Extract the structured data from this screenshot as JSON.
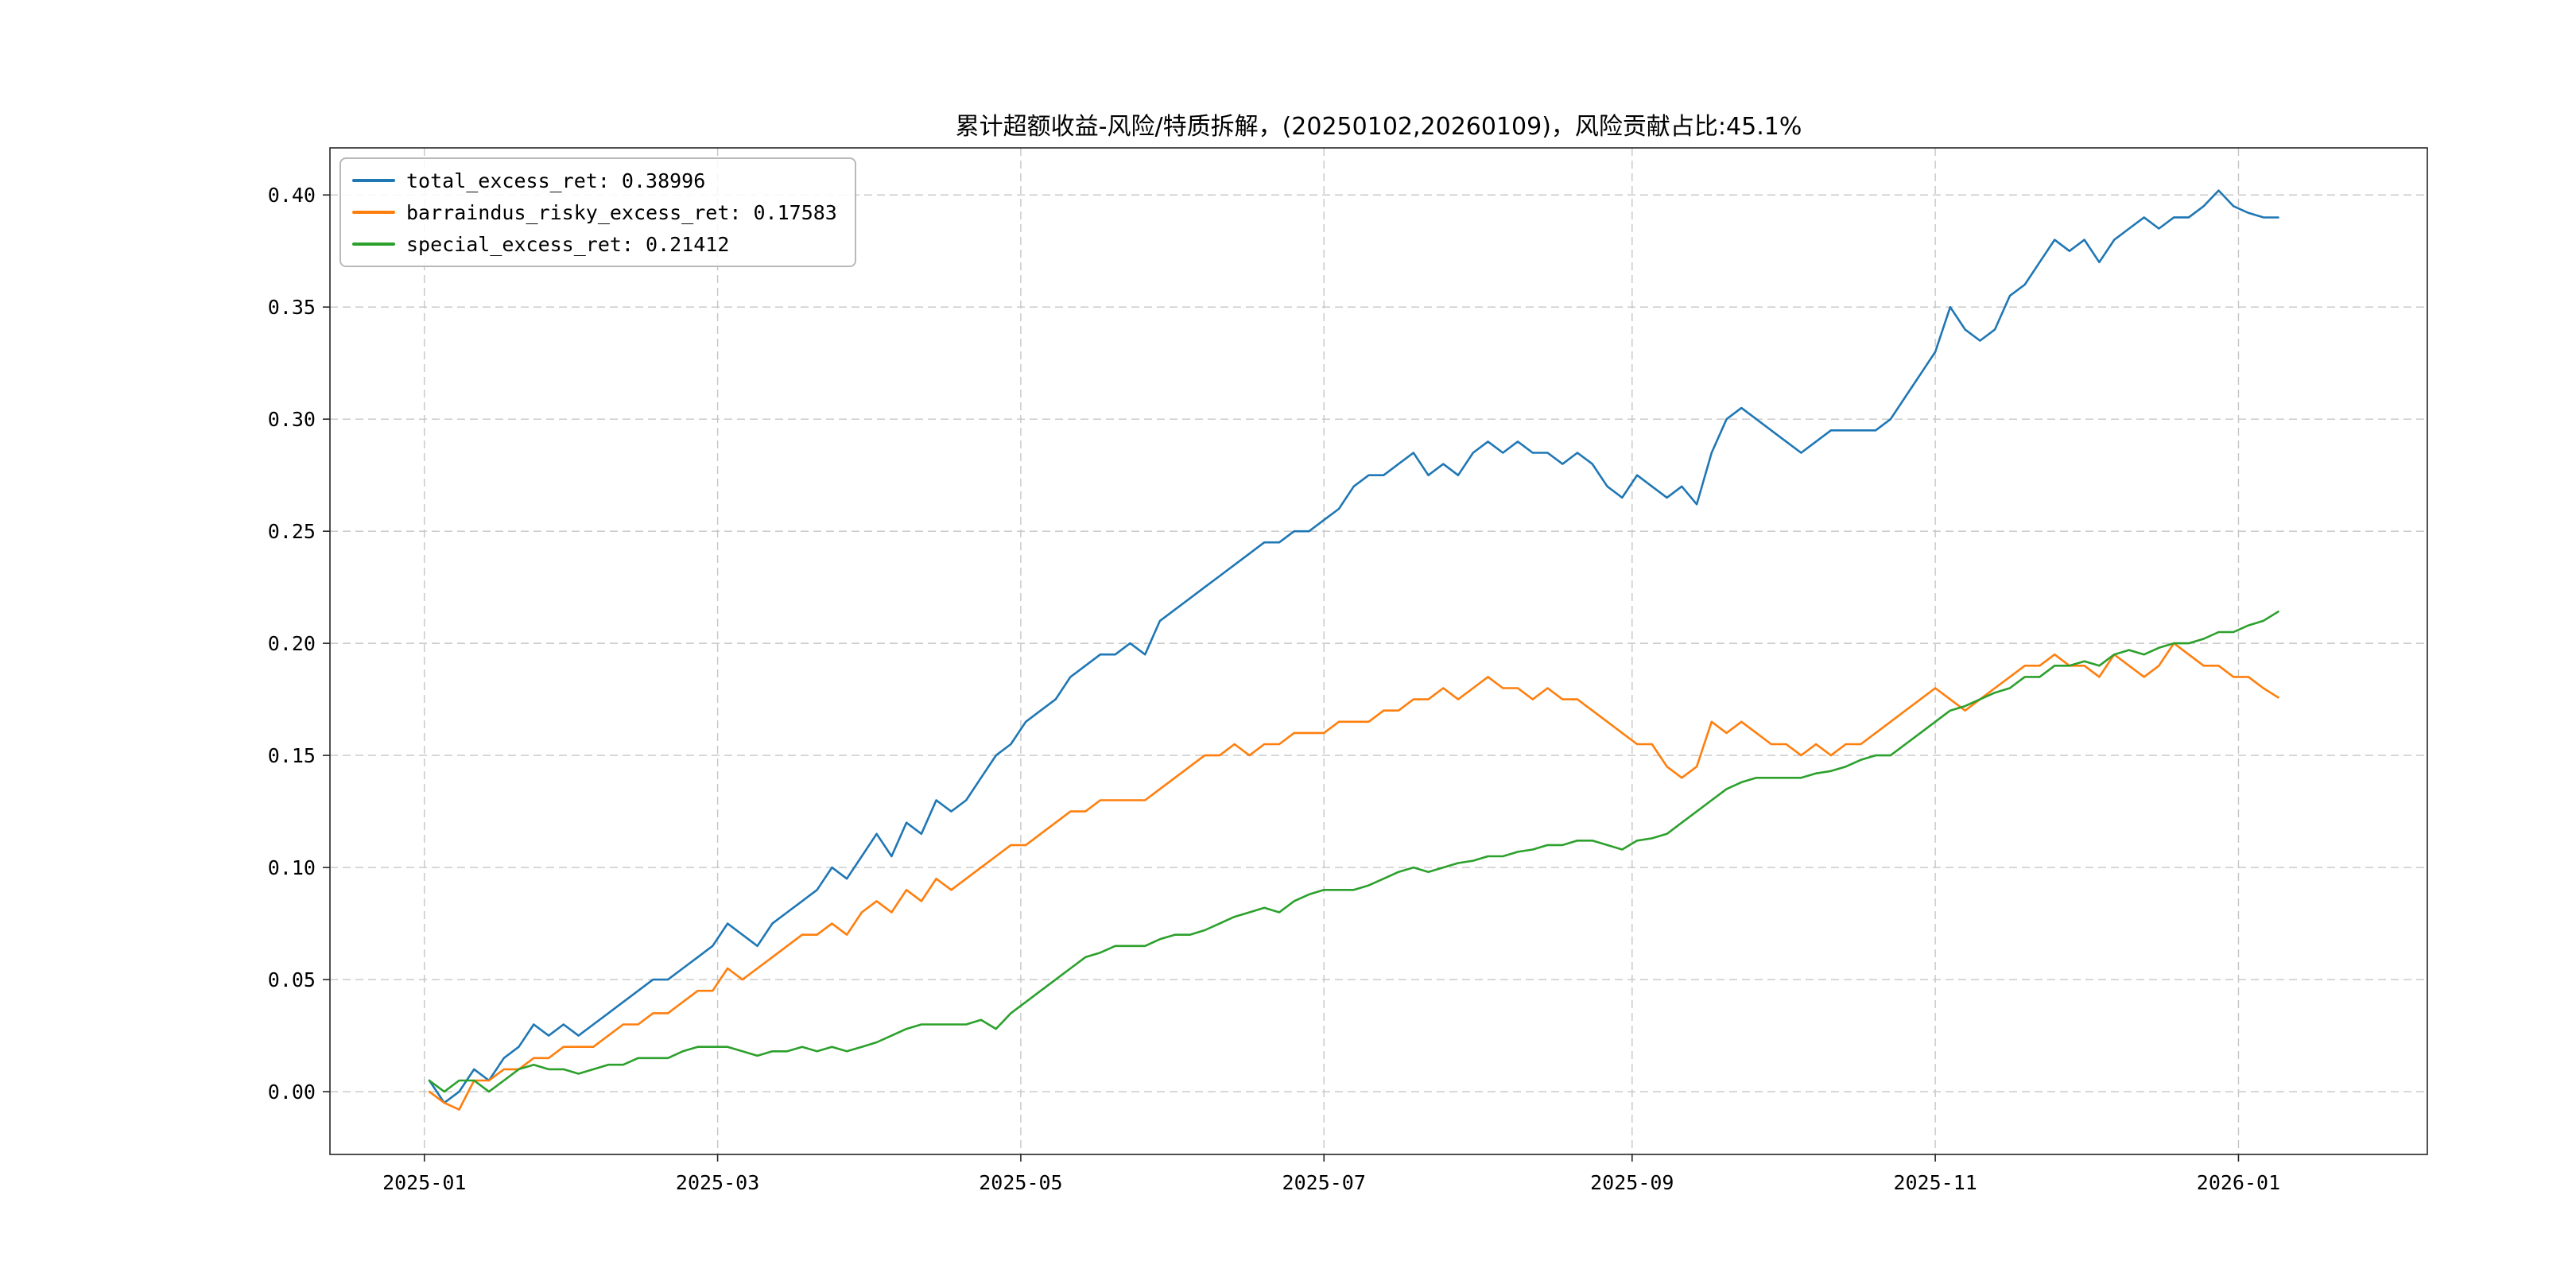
{
  "chart_data": {
    "type": "line",
    "title": "累计超额收益-风险/特质拆解，(20250102,20260109)，风险贡献占比:45.1%",
    "risk_contribution_pct": "45.1%",
    "xlabel": "",
    "ylabel": "",
    "grid": true,
    "legend_position": "upper left",
    "x_unit": "days since 2025-01-02",
    "x_step_days": 3,
    "xlim": [
      -20,
      402
    ],
    "ylim": [
      -0.028,
      0.421
    ],
    "x_ticks": [
      {
        "label": "2025-01",
        "day": -1
      },
      {
        "label": "2025-03",
        "day": 58
      },
      {
        "label": "2025-05",
        "day": 119
      },
      {
        "label": "2025-07",
        "day": 180
      },
      {
        "label": "2025-09",
        "day": 242
      },
      {
        "label": "2025-11",
        "day": 303
      },
      {
        "label": "2026-01",
        "day": 364
      }
    ],
    "y_ticks": [
      {
        "label": "0.00",
        "value": 0.0
      },
      {
        "label": "0.05",
        "value": 0.05
      },
      {
        "label": "0.10",
        "value": 0.1
      },
      {
        "label": "0.15",
        "value": 0.15
      },
      {
        "label": "0.20",
        "value": 0.2
      },
      {
        "label": "0.25",
        "value": 0.25
      },
      {
        "label": "0.30",
        "value": 0.3
      },
      {
        "label": "0.35",
        "value": 0.35
      },
      {
        "label": "0.40",
        "value": 0.4
      }
    ],
    "legend": [
      {
        "label": "total_excess_ret: 0.38996",
        "color": "#1f77b4"
      },
      {
        "label": "barraindus_risky_excess_ret: 0.17583",
        "color": "#ff7f0e"
      },
      {
        "label": "special_excess_ret: 0.21412",
        "color": "#2ca02c"
      }
    ],
    "series": [
      {
        "name": "total_excess_ret",
        "final_value": 0.38996,
        "color": "#1f77b4",
        "values": [
          0.005,
          -0.005,
          0.0,
          0.01,
          0.005,
          0.015,
          0.02,
          0.03,
          0.025,
          0.03,
          0.025,
          0.03,
          0.035,
          0.04,
          0.045,
          0.05,
          0.05,
          0.055,
          0.06,
          0.065,
          0.075,
          0.07,
          0.065,
          0.075,
          0.08,
          0.085,
          0.09,
          0.1,
          0.095,
          0.105,
          0.115,
          0.105,
          0.12,
          0.115,
          0.13,
          0.125,
          0.13,
          0.14,
          0.15,
          0.155,
          0.165,
          0.17,
          0.175,
          0.185,
          0.19,
          0.195,
          0.195,
          0.2,
          0.195,
          0.21,
          0.215,
          0.22,
          0.225,
          0.23,
          0.235,
          0.24,
          0.245,
          0.245,
          0.25,
          0.25,
          0.255,
          0.26,
          0.27,
          0.275,
          0.275,
          0.28,
          0.285,
          0.275,
          0.28,
          0.275,
          0.285,
          0.29,
          0.285,
          0.29,
          0.285,
          0.285,
          0.28,
          0.285,
          0.28,
          0.27,
          0.265,
          0.275,
          0.27,
          0.265,
          0.27,
          0.262,
          0.285,
          0.3,
          0.305,
          0.3,
          0.295,
          0.29,
          0.285,
          0.29,
          0.295,
          0.295,
          0.295,
          0.295,
          0.3,
          0.31,
          0.32,
          0.33,
          0.35,
          0.34,
          0.335,
          0.34,
          0.355,
          0.36,
          0.37,
          0.38,
          0.375,
          0.38,
          0.37,
          0.38,
          0.385,
          0.39,
          0.385,
          0.39,
          0.39,
          0.395,
          0.402,
          0.395,
          0.392,
          0.39,
          0.38996
        ]
      },
      {
        "name": "barraindus_risky_excess_ret",
        "final_value": 0.17583,
        "color": "#ff7f0e",
        "values": [
          0.0,
          -0.005,
          -0.008,
          0.005,
          0.005,
          0.01,
          0.01,
          0.015,
          0.015,
          0.02,
          0.02,
          0.02,
          0.025,
          0.03,
          0.03,
          0.035,
          0.035,
          0.04,
          0.045,
          0.045,
          0.055,
          0.05,
          0.055,
          0.06,
          0.065,
          0.07,
          0.07,
          0.075,
          0.07,
          0.08,
          0.085,
          0.08,
          0.09,
          0.085,
          0.095,
          0.09,
          0.095,
          0.1,
          0.105,
          0.11,
          0.11,
          0.115,
          0.12,
          0.125,
          0.125,
          0.13,
          0.13,
          0.13,
          0.13,
          0.135,
          0.14,
          0.145,
          0.15,
          0.15,
          0.155,
          0.15,
          0.155,
          0.155,
          0.16,
          0.16,
          0.16,
          0.165,
          0.165,
          0.165,
          0.17,
          0.17,
          0.175,
          0.175,
          0.18,
          0.175,
          0.18,
          0.185,
          0.18,
          0.18,
          0.175,
          0.18,
          0.175,
          0.175,
          0.17,
          0.165,
          0.16,
          0.155,
          0.155,
          0.145,
          0.14,
          0.145,
          0.165,
          0.16,
          0.165,
          0.16,
          0.155,
          0.155,
          0.15,
          0.155,
          0.15,
          0.155,
          0.155,
          0.16,
          0.165,
          0.17,
          0.175,
          0.18,
          0.175,
          0.17,
          0.175,
          0.18,
          0.185,
          0.19,
          0.19,
          0.195,
          0.19,
          0.19,
          0.185,
          0.195,
          0.19,
          0.185,
          0.19,
          0.2,
          0.195,
          0.19,
          0.19,
          0.185,
          0.185,
          0.18,
          0.17583
        ]
      },
      {
        "name": "special_excess_ret",
        "final_value": 0.21412,
        "color": "#2ca02c",
        "values": [
          0.005,
          0.0,
          0.005,
          0.005,
          0.0,
          0.005,
          0.01,
          0.012,
          0.01,
          0.01,
          0.008,
          0.01,
          0.012,
          0.012,
          0.015,
          0.015,
          0.015,
          0.018,
          0.02,
          0.02,
          0.02,
          0.018,
          0.016,
          0.018,
          0.018,
          0.02,
          0.018,
          0.02,
          0.018,
          0.02,
          0.022,
          0.025,
          0.028,
          0.03,
          0.03,
          0.03,
          0.03,
          0.032,
          0.028,
          0.035,
          0.04,
          0.045,
          0.05,
          0.055,
          0.06,
          0.062,
          0.065,
          0.065,
          0.065,
          0.068,
          0.07,
          0.07,
          0.072,
          0.075,
          0.078,
          0.08,
          0.082,
          0.08,
          0.085,
          0.088,
          0.09,
          0.09,
          0.09,
          0.092,
          0.095,
          0.098,
          0.1,
          0.098,
          0.1,
          0.102,
          0.103,
          0.105,
          0.105,
          0.107,
          0.108,
          0.11,
          0.11,
          0.112,
          0.112,
          0.11,
          0.108,
          0.112,
          0.113,
          0.115,
          0.12,
          0.125,
          0.13,
          0.135,
          0.138,
          0.14,
          0.14,
          0.14,
          0.14,
          0.142,
          0.143,
          0.145,
          0.148,
          0.15,
          0.15,
          0.155,
          0.16,
          0.165,
          0.17,
          0.172,
          0.175,
          0.178,
          0.18,
          0.185,
          0.185,
          0.19,
          0.19,
          0.192,
          0.19,
          0.195,
          0.197,
          0.195,
          0.198,
          0.2,
          0.2,
          0.202,
          0.205,
          0.205,
          0.208,
          0.21,
          0.21412
        ]
      }
    ]
  }
}
